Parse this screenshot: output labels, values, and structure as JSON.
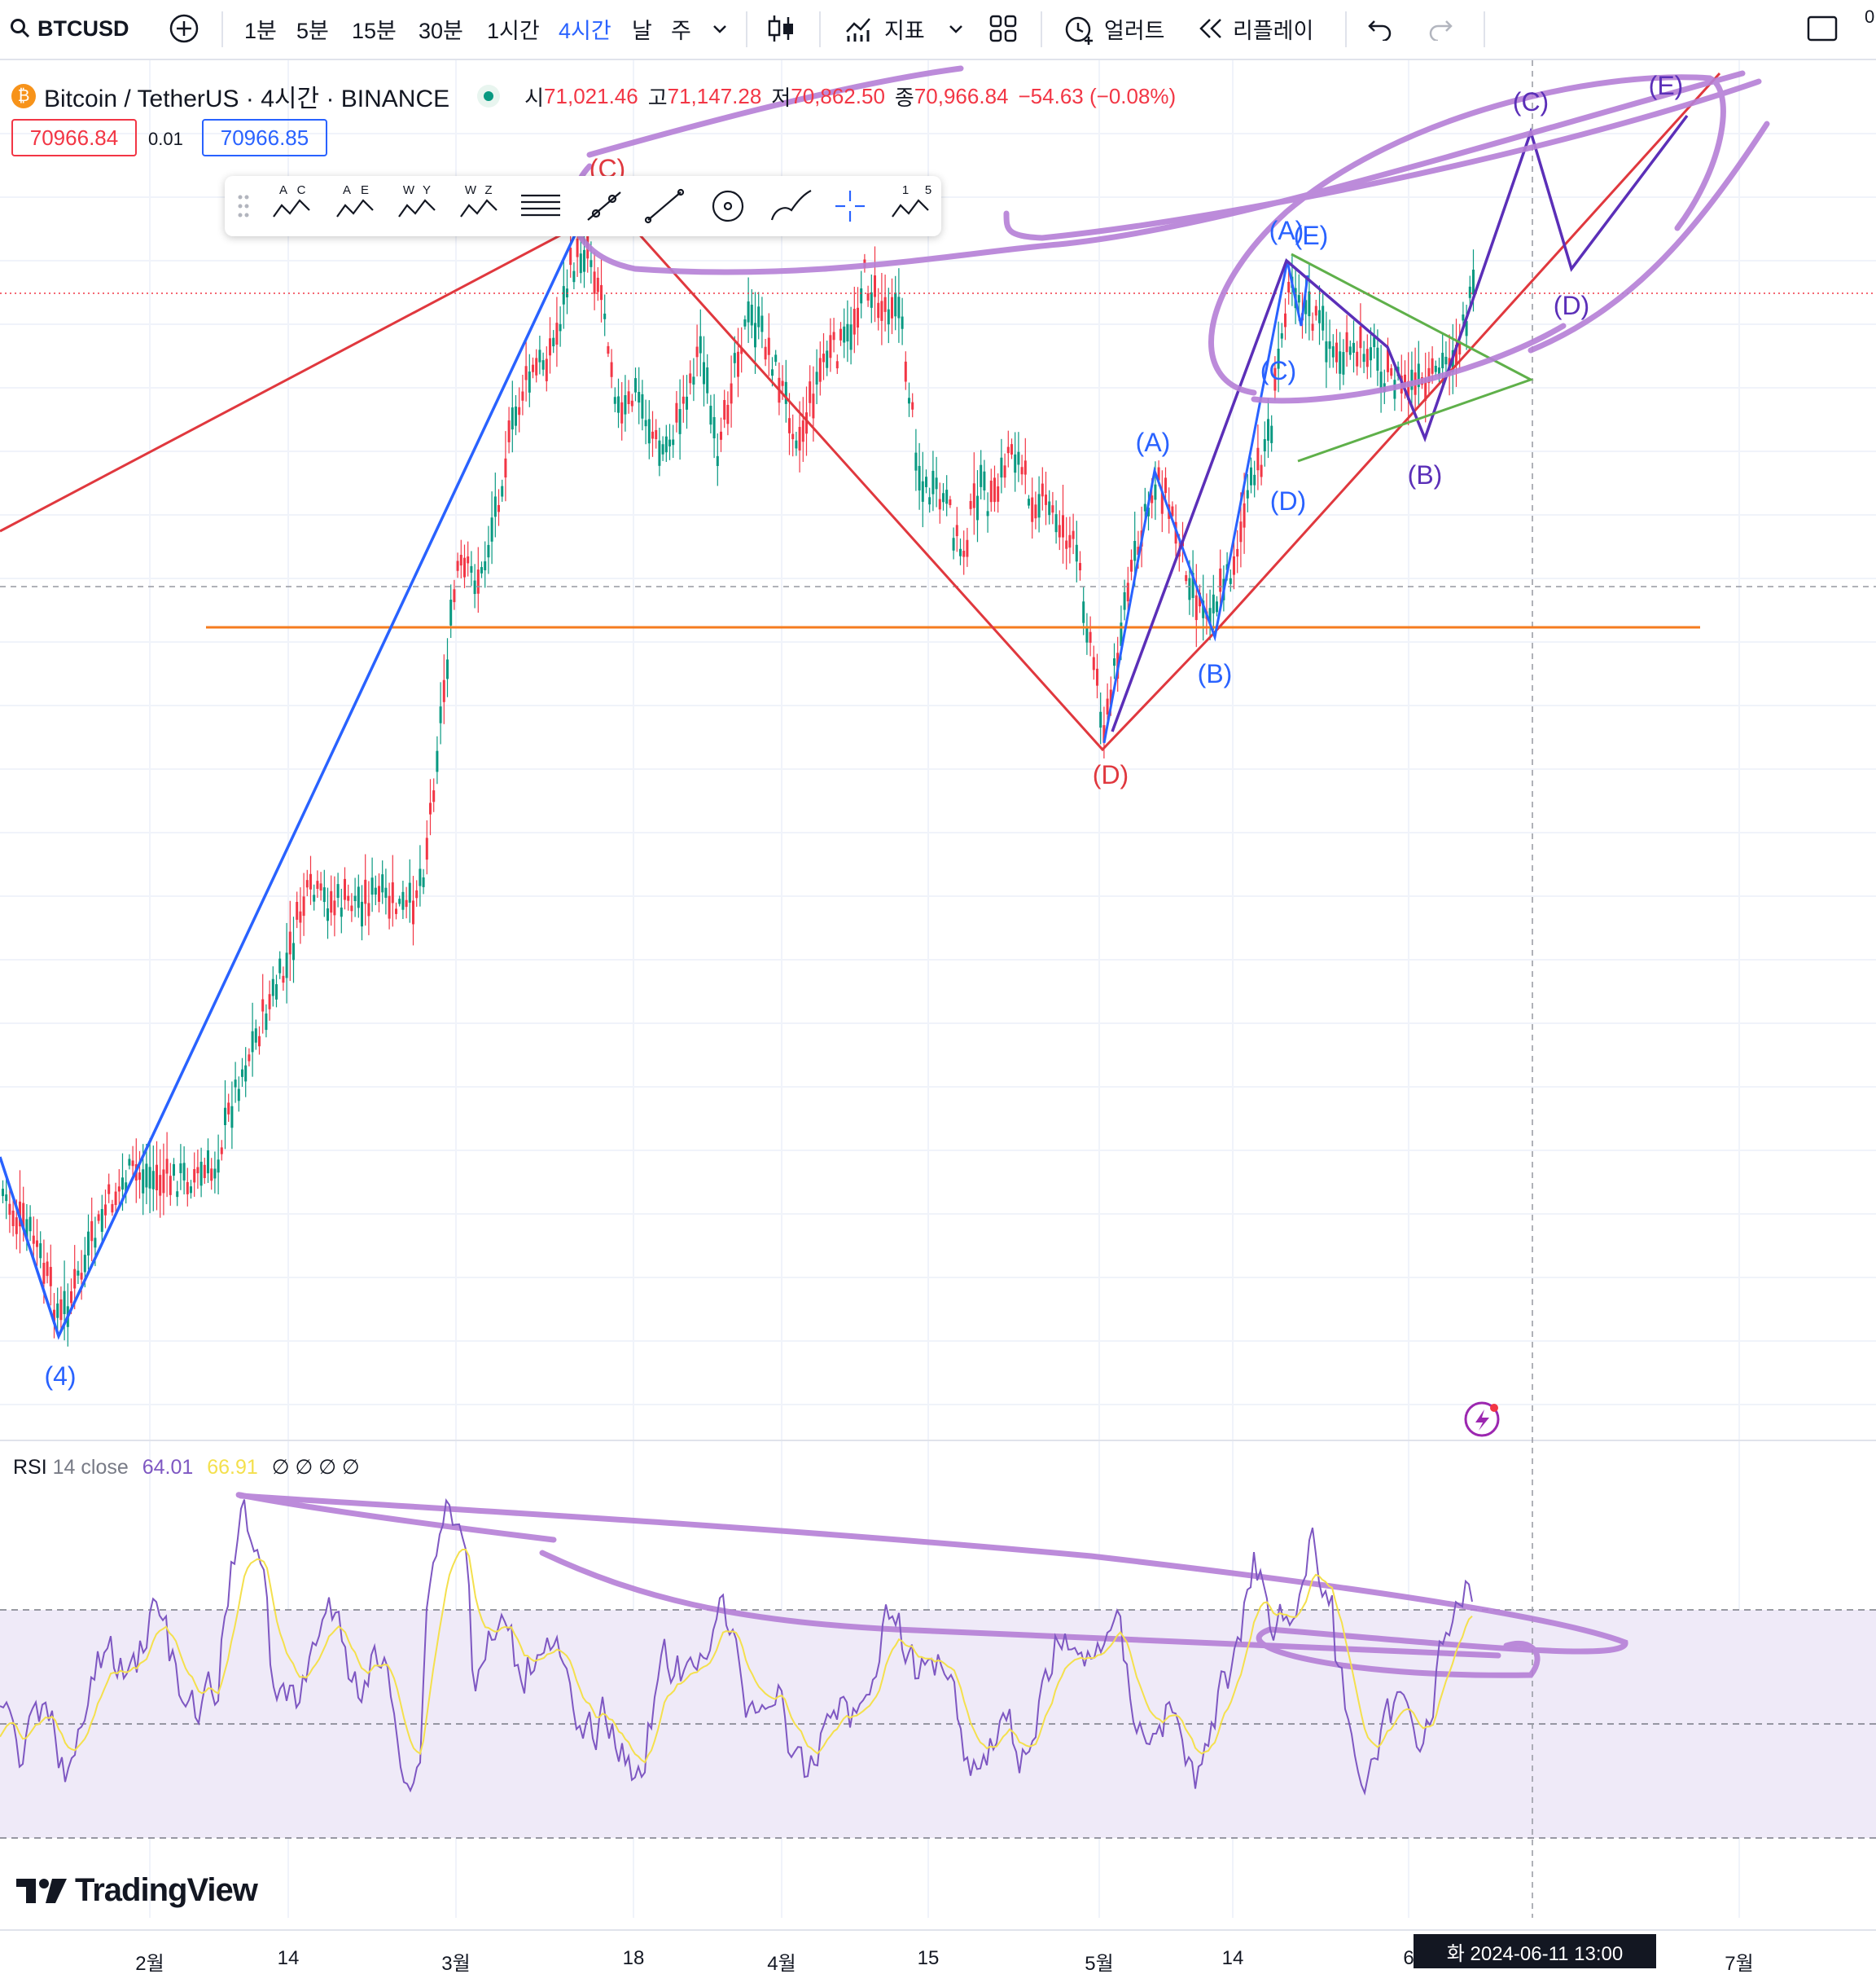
{
  "toolbar": {
    "symbol": "BTCUSD",
    "intervals": [
      "1분",
      "5분",
      "15분",
      "30분",
      "1시간",
      "4시간",
      "날",
      "주"
    ],
    "active_interval": "4시간",
    "indicators_label": "지표",
    "alerts_label": "얼러트",
    "replay_label": "리플레이",
    "right_edge_text": "0"
  },
  "legend": {
    "title": "Bitcoin / TetherUS · 4시간 · BINANCE",
    "open_label": "시",
    "open": "71,021.46",
    "high_label": "고",
    "high": "71,147.28",
    "low_label": "저",
    "low": "70,862.50",
    "close_label": "종",
    "close": "70,966.84",
    "change": "−54.63 (−0.08%)",
    "bid": "70966.84",
    "spread": "0.01",
    "ask": "70966.85"
  },
  "drawing_toolbar": {
    "tools": [
      {
        "icon": "abc-pattern-icon",
        "letters": [
          "A",
          "C"
        ]
      },
      {
        "icon": "abcde-pattern-icon",
        "letters": [
          "A",
          "E"
        ]
      },
      {
        "icon": "wxy-pattern-icon",
        "letters": [
          "W",
          "Y"
        ]
      },
      {
        "icon": "wxyxz-pattern-icon",
        "letters": [
          "W",
          "Z"
        ]
      }
    ],
    "impulse_letters": [
      "1",
      "5"
    ]
  },
  "wave_labels": {
    "l4": "(4)",
    "lc_top": "(C)",
    "ld_red": "(D)",
    "la_blue": "(A)",
    "lb_blue": "(B)",
    "lc_blue": "(C)",
    "ld_blue": "(D)",
    "la_top": "(A)",
    "le_top": "(E)",
    "lb_purple": "(B)",
    "lc_purple": "(C)",
    "ld_purple": "(D)",
    "le_purple": "(E)"
  },
  "rsi": {
    "name": "RSI",
    "params": "14 close",
    "value": "64.01",
    "ma_value": "66.91",
    "placeholders": "∅ ∅ ∅ ∅"
  },
  "x_axis": {
    "ticks": [
      "2월",
      "14",
      "3월",
      "18",
      "4월",
      "15",
      "5월",
      "14",
      "6",
      "7월"
    ],
    "cursor_label": "화 2024-06-11   13:00"
  },
  "branding": {
    "logo_text": "TradingView"
  },
  "colors": {
    "up": "#089981",
    "down": "#f23645",
    "blue_wave": "#2962ff",
    "red_wave": "#e0383e",
    "purple_wave": "#5b2fb8",
    "highlighter": "#b57fd6",
    "support": "#f57c1f",
    "triangle": "#5fb04a",
    "rsi_line": "#7e57c2",
    "rsi_ma": "#f4e04d"
  }
}
